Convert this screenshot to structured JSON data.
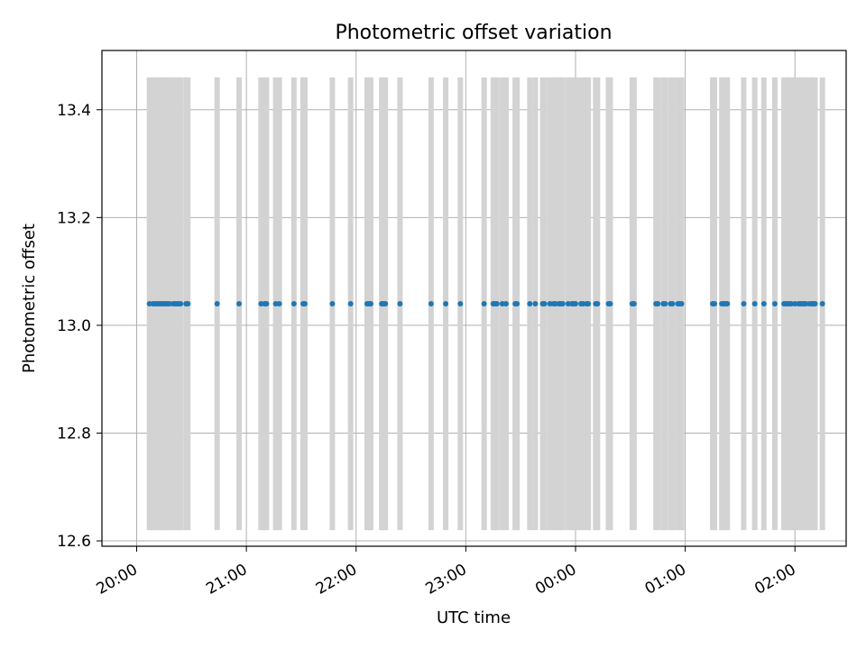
{
  "chart_data": {
    "type": "scatter",
    "title": "Photometric offset variation",
    "xlabel": "UTC time",
    "ylabel": "Photometric offset",
    "x_unit": "UTC time",
    "xlim": [
      "19:41",
      "26:28"
    ],
    "ylim": [
      12.59,
      13.51
    ],
    "grid": true,
    "x_ticks": [
      {
        "t": "20:00",
        "label": "20:00"
      },
      {
        "t": "21:00",
        "label": "21:00"
      },
      {
        "t": "22:00",
        "label": "22:00"
      },
      {
        "t": "23:00",
        "label": "23:00"
      },
      {
        "t": "24:00",
        "label": "00:00"
      },
      {
        "t": "25:00",
        "label": "01:00"
      },
      {
        "t": "26:00",
        "label": "02:00"
      }
    ],
    "y_ticks": [
      {
        "v": 12.6,
        "label": "12.6"
      },
      {
        "v": 12.8,
        "label": "12.8"
      },
      {
        "v": 13.0,
        "label": "13.0"
      },
      {
        "v": 13.2,
        "label": "13.2"
      },
      {
        "v": 13.4,
        "label": "13.4"
      }
    ],
    "colors": {
      "points": "#1f77b4",
      "error_bars": "#d3d3d3",
      "grid": "#b0b0b0",
      "axes": "#000000"
    },
    "series": [
      {
        "y": 13.04,
        "error": 0.42,
        "times": [
          "20:07",
          "20:09",
          "20:10",
          "20:11",
          "20:12",
          "20:13",
          "20:14",
          "20:15",
          "20:16",
          "20:17",
          "20:18",
          "20:20",
          "20:21",
          "20:22",
          "20:23",
          "20:24",
          "20:27",
          "20:28",
          "20:44",
          "20:56",
          "21:08",
          "21:10",
          "21:11",
          "21:16",
          "21:18",
          "21:26",
          "21:31",
          "21:32",
          "21:47",
          "21:57",
          "22:06",
          "22:07",
          "22:08",
          "22:14",
          "22:15",
          "22:16",
          "22:24",
          "22:41",
          "22:49",
          "22:57",
          "23:10",
          "23:15",
          "23:16",
          "23:17",
          "23:20",
          "23:22",
          "23:27",
          "23:28",
          "23:35",
          "23:38",
          "23:42",
          "23:43",
          "23:46",
          "23:48",
          "23:49",
          "23:51",
          "23:52",
          "23:53",
          "23:56",
          "23:58",
          "23:59",
          "24:00",
          "24:03",
          "24:04",
          "24:06",
          "24:07",
          "24:11",
          "24:12",
          "24:18",
          "24:19",
          "24:31",
          "24:32",
          "24:44",
          "24:45",
          "24:48",
          "24:49",
          "24:52",
          "24:53",
          "24:56",
          "24:57",
          "24:58",
          "25:15",
          "25:16",
          "25:20",
          "25:21",
          "25:22",
          "25:23",
          "25:32",
          "25:38",
          "25:43",
          "25:49",
          "25:54",
          "25:55",
          "25:56",
          "25:57",
          "25:58",
          "26:00",
          "26:02",
          "26:03",
          "26:04",
          "26:05",
          "26:06",
          "26:08",
          "26:09",
          "26:10",
          "26:11",
          "26:15"
        ]
      }
    ]
  }
}
